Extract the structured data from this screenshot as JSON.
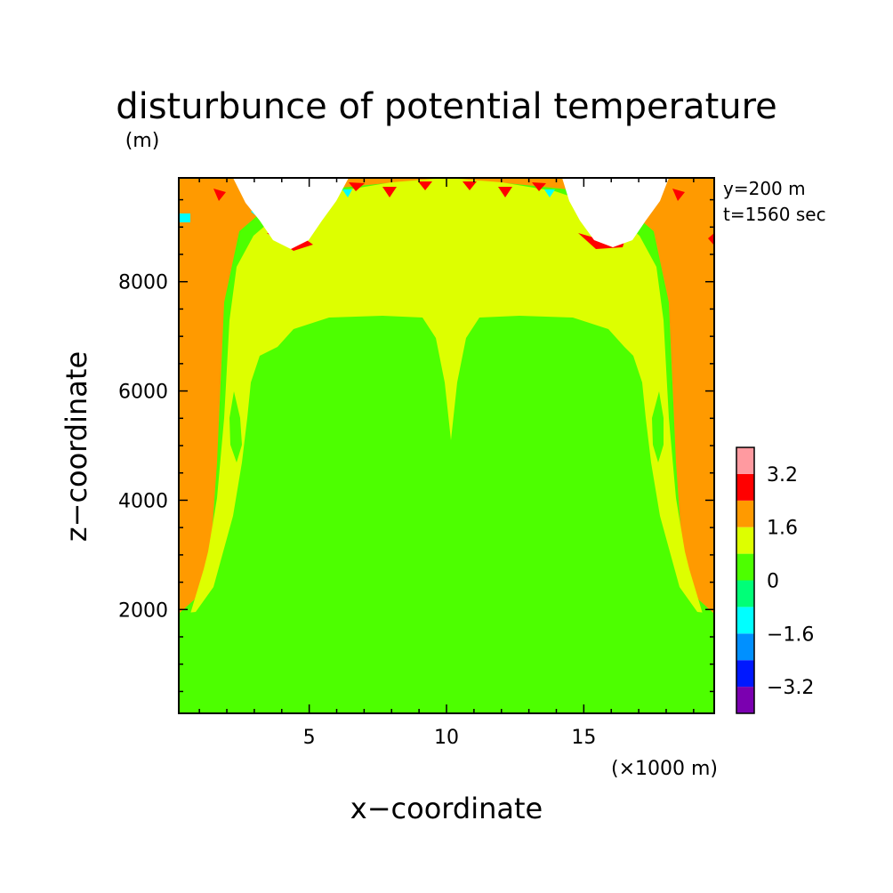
{
  "chart_data": {
    "type": "heatmap",
    "title": "disturbunce of potential temperature",
    "xlabel": "x−coordinate",
    "ylabel": "z−coordinate",
    "x_unit": "(×1000 m)",
    "y_unit": "(m)",
    "x_ticks": [
      {
        "label": "5",
        "value": 5
      },
      {
        "label": "10",
        "value": 10
      },
      {
        "label": "15",
        "value": 15
      }
    ],
    "y_ticks": [
      {
        "label": "2000",
        "value": 2000
      },
      {
        "label": "4000",
        "value": 4000
      },
      {
        "label": "6000",
        "value": 6000
      },
      {
        "label": "8000",
        "value": 8000
      }
    ],
    "xlim": [
      0.25,
      19.75
    ],
    "ylim": [
      100,
      9900
    ],
    "annotations": [
      "y=200 m",
      "t=1560 sec"
    ],
    "colorbar": {
      "levels": [
        -4.0,
        -3.2,
        -2.4,
        -1.6,
        -0.8,
        0,
        0.8,
        1.6,
        2.4,
        3.2,
        4.0
      ],
      "labels": [
        "3.2",
        "1.6",
        "0",
        "−1.6",
        "−3.2"
      ],
      "colors": [
        "#7b00b0",
        "#0018ff",
        "#0090ff",
        "#00ffff",
        "#00ff78",
        "#4dff00",
        "#ddff00",
        "#ff9a00",
        "#ff0000",
        "#ff9aa0"
      ]
    },
    "regions": {
      "background": {
        "level": "0 to 0.8",
        "color": "#4dff00"
      },
      "mid_layer": {
        "level": "0.8 to 1.6",
        "color": "#ddff00"
      },
      "edge_layer": {
        "level": "1.6 to 2.4",
        "color": "#ff9a00"
      },
      "hot_spots": {
        "level": "2.4 to 3.2",
        "color": "#ff0000"
      }
    }
  }
}
